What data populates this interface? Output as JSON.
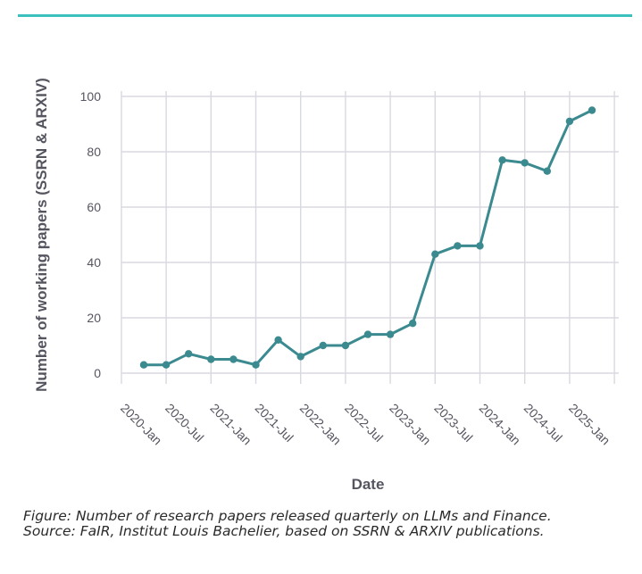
{
  "figure": {
    "caption_line1": "Figure: Number of research papers released quarterly on LLMs and Finance.",
    "caption_line2": "Source: FaIR, Institut Louis Bachelier, based on SSRN & ARXIV publications."
  },
  "colors": {
    "accent_rule": "#3cc0bd",
    "series": "#3b8a90",
    "grid": "#d8d8e0",
    "text": "#555560"
  },
  "chart_data": {
    "type": "line",
    "title": "",
    "xlabel": "Date",
    "ylabel": "Number of working papers (SSRN & ARXIV)",
    "ylim": [
      0,
      100
    ],
    "yticks": [
      0,
      20,
      40,
      60,
      80,
      100
    ],
    "x_tick_labels": [
      "2020-Jan",
      "2020-Jul",
      "2021-Jan",
      "2021-Jul",
      "2022-Jan",
      "2022-Jul",
      "2023-Jan",
      "2023-Jul",
      "2024-Jan",
      "2024-Jul",
      "2025-Jan"
    ],
    "grid": true,
    "series": [
      {
        "x": [
          "2020-Q2",
          "2020-Q3",
          "2020-Q4",
          "2021-Q1",
          "2021-Q2",
          "2021-Q3",
          "2021-Q4",
          "2022-Q1",
          "2022-Q2",
          "2022-Q3",
          "2022-Q4",
          "2023-Q1",
          "2023-Q2",
          "2023-Q3",
          "2023-Q4",
          "2024-Q1",
          "2024-Q2",
          "2024-Q3",
          "2024-Q4",
          "2025-Q1",
          "2025-Q2"
        ],
        "values": [
          3,
          3,
          7,
          5,
          5,
          3,
          12,
          6,
          10,
          10,
          14,
          14,
          18,
          43,
          46,
          46,
          77,
          76,
          73,
          91,
          95
        ]
      }
    ]
  }
}
